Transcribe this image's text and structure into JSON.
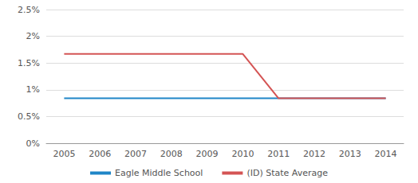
{
  "chart_data": {
    "type": "line",
    "categories": [
      "2005",
      "2006",
      "2007",
      "2008",
      "2009",
      "2010",
      "2011",
      "2012",
      "2013",
      "2014"
    ],
    "series": [
      {
        "name": "Eagle Middle School",
        "color": "#1f86c7",
        "values": [
          0.84,
          0.84,
          0.84,
          0.84,
          0.84,
          0.84,
          0.84,
          0.84,
          0.84,
          0.84
        ]
      },
      {
        "name": "(ID) State Average",
        "color": "#d45454",
        "values": [
          1.67,
          1.67,
          1.67,
          1.67,
          1.67,
          1.67,
          0.84,
          0.84,
          0.84,
          0.84
        ]
      }
    ],
    "ylim": [
      0,
      2.5
    ],
    "yticks": [
      {
        "value": 0,
        "label": "0%"
      },
      {
        "value": 0.5,
        "label": "0.5%"
      },
      {
        "value": 1,
        "label": "1%"
      },
      {
        "value": 1.5,
        "label": "1.5%"
      },
      {
        "value": 2,
        "label": "2%"
      },
      {
        "value": 2.5,
        "label": "2.5%"
      }
    ],
    "grid": true,
    "legend": "bottom"
  }
}
